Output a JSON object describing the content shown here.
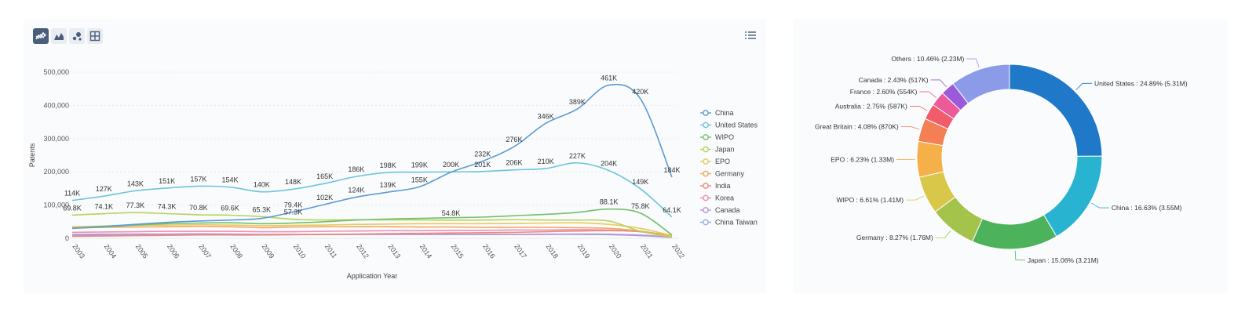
{
  "toolbar": {
    "buttons": [
      {
        "icon": "line-chart-icon",
        "active": true
      },
      {
        "icon": "area-chart-icon",
        "active": false
      },
      {
        "icon": "scatter-chart-icon",
        "active": false
      },
      {
        "icon": "table-grid-icon",
        "active": false
      }
    ],
    "legend_toggle_icon": "list-icon"
  },
  "chart_data": [
    {
      "type": "line",
      "title": "",
      "xlabel": "Application Year",
      "ylabel": "Patents",
      "ylim": [
        0,
        500000
      ],
      "yticks": [
        "0",
        "100,000",
        "200,000",
        "300,000",
        "400,000",
        "500,000"
      ],
      "ytick_values": [
        0,
        100000,
        200000,
        300000,
        400000,
        500000
      ],
      "categories": [
        "2003",
        "2004",
        "2005",
        "2006",
        "2007",
        "2008",
        "2009",
        "2010",
        "2011",
        "2012",
        "2013",
        "2014",
        "2015",
        "2016",
        "2017",
        "2018",
        "2019",
        "2020",
        "2021",
        "2022"
      ],
      "legend_position": "right",
      "series": [
        {
          "name": "China",
          "color": "#5b9bd5",
          "values": [
            30000,
            36000,
            42000,
            48000,
            52000,
            55000,
            60000,
            79400,
            102000,
            124000,
            139000,
            155000,
            199000,
            232000,
            276000,
            346000,
            389000,
            461000,
            420000,
            184000
          ],
          "labels": [
            "",
            "",
            "",
            "",
            "",
            "",
            "",
            "79.4K",
            "102K",
            "124K",
            "139K",
            "155K",
            "",
            "232K",
            "276K",
            "346K",
            "389K",
            "461K",
            "420K",
            "184K"
          ]
        },
        {
          "name": "United States",
          "color": "#6cc4dc",
          "values": [
            114000,
            127000,
            143000,
            151000,
            157000,
            154000,
            140000,
            148000,
            165000,
            186000,
            198000,
            199000,
            200000,
            201000,
            206000,
            210000,
            227000,
            204000,
            149000,
            64100
          ],
          "labels": [
            "114K",
            "127K",
            "143K",
            "151K",
            "157K",
            "154K",
            "140K",
            "148K",
            "165K",
            "186K",
            "198K",
            "199K",
            "200K",
            "201K",
            "206K",
            "210K",
            "227K",
            "204K",
            "149K",
            "64.1K"
          ]
        },
        {
          "name": "WIPO",
          "color": "#73c06b",
          "values": [
            30000,
            34000,
            40000,
            44000,
            46000,
            47000,
            44000,
            46000,
            50000,
            55000,
            58000,
            60000,
            62000,
            64000,
            68000,
            72000,
            78000,
            88100,
            75800,
            10000
          ],
          "labels": [
            "",
            "",
            "",
            "",
            "",
            "",
            "",
            "",
            "",
            "",
            "",
            "",
            "",
            "",
            "",
            "",
            "",
            "88.1K",
            "75.8K",
            ""
          ]
        },
        {
          "name": "Japan",
          "color": "#b5d35a",
          "values": [
            69800,
            74100,
            77300,
            74300,
            70800,
            69600,
            65300,
            57300,
            55200,
            55800,
            55600,
            55300,
            54800,
            55000,
            56000,
            55000,
            54900,
            52000,
            21300,
            3000
          ],
          "labels": [
            "69.8K",
            "74.1K",
            "77.3K",
            "74.3K",
            "70.8K",
            "69.6K",
            "65.3K",
            "57.3K",
            "",
            "",
            "",
            "",
            "54.8K",
            "",
            "",
            "",
            "",
            "",
            "",
            ""
          ]
        },
        {
          "name": "EPO",
          "color": "#e8c95a",
          "values": [
            35000,
            37000,
            39000,
            40000,
            41000,
            40000,
            38000,
            39000,
            40000,
            42000,
            43000,
            44000,
            44000,
            44000,
            45000,
            46000,
            47000,
            42000,
            30000,
            8000
          ],
          "labels": []
        },
        {
          "name": "Germany",
          "color": "#f0a863",
          "values": [
            32000,
            33000,
            34000,
            35000,
            36000,
            35000,
            32000,
            34000,
            35000,
            35000,
            35000,
            34000,
            34000,
            33000,
            33000,
            33000,
            32000,
            30000,
            22000,
            6000
          ],
          "labels": []
        },
        {
          "name": "India",
          "color": "#ef8a7a",
          "values": [
            6000,
            7000,
            8000,
            9000,
            10000,
            10000,
            10000,
            11000,
            12000,
            13000,
            14000,
            15000,
            16000,
            17000,
            18000,
            20000,
            22000,
            23000,
            20000,
            9000
          ],
          "labels": []
        },
        {
          "name": "Korea",
          "color": "#ec8fb0",
          "values": [
            18000,
            19000,
            20000,
            21000,
            21000,
            21000,
            20000,
            20000,
            21000,
            22000,
            23000,
            23000,
            24000,
            24000,
            25000,
            25000,
            26000,
            25000,
            20000,
            6000
          ],
          "labels": []
        },
        {
          "name": "Canada",
          "color": "#b892dc",
          "values": [
            12000,
            12500,
            13000,
            13000,
            13500,
            13000,
            12000,
            12000,
            12000,
            12000,
            12000,
            12000,
            12000,
            12000,
            12000,
            12000,
            12000,
            11000,
            8000,
            3000
          ],
          "labels": []
        },
        {
          "name": "China Taiwan",
          "color": "#9ea9e8",
          "values": [
            8000,
            9000,
            10000,
            11000,
            11500,
            11000,
            10000,
            11000,
            11500,
            12000,
            12000,
            12000,
            12000,
            12000,
            12000,
            12500,
            13000,
            12500,
            10000,
            3000
          ],
          "labels": []
        }
      ]
    },
    {
      "type": "pie",
      "variant": "donut",
      "title": "",
      "slices": [
        {
          "name": "United States",
          "value": 24.89,
          "label": "United States : 24.89% (5.31M)",
          "color": "#1f78c8"
        },
        {
          "name": "China",
          "value": 16.63,
          "label": "China : 16.63% (3.55M)",
          "color": "#28b3d0"
        },
        {
          "name": "Japan",
          "value": 15.06,
          "label": "Japan : 15.06% (3.21M)",
          "color": "#4cb35c"
        },
        {
          "name": "Germany",
          "value": 8.27,
          "label": "Germany : 8.27% (1.76M)",
          "color": "#a4c34a"
        },
        {
          "name": "WIPO",
          "value": 6.61,
          "label": "WIPO : 6.61% (1.41M)",
          "color": "#d8c748"
        },
        {
          "name": "EPO",
          "value": 6.23,
          "label": "EPO : 6.23% (1.33M)",
          "color": "#f6b04a"
        },
        {
          "name": "Great Britain",
          "value": 4.08,
          "label": "Great Britain : 4.08% (870K)",
          "color": "#f47f55"
        },
        {
          "name": "Australia",
          "value": 2.75,
          "label": "Australia : 2.75% (587K)",
          "color": "#f25c6a"
        },
        {
          "name": "France",
          "value": 2.6,
          "label": "France : 2.60% (554K)",
          "color": "#ec5a9c"
        },
        {
          "name": "Canada",
          "value": 2.43,
          "label": "Canada : 2.43% (517K)",
          "color": "#9b5ad8"
        },
        {
          "name": "Others",
          "value": 10.46,
          "label": "Others : 10.46% (2.23M)",
          "color": "#8c9be8"
        }
      ]
    }
  ]
}
